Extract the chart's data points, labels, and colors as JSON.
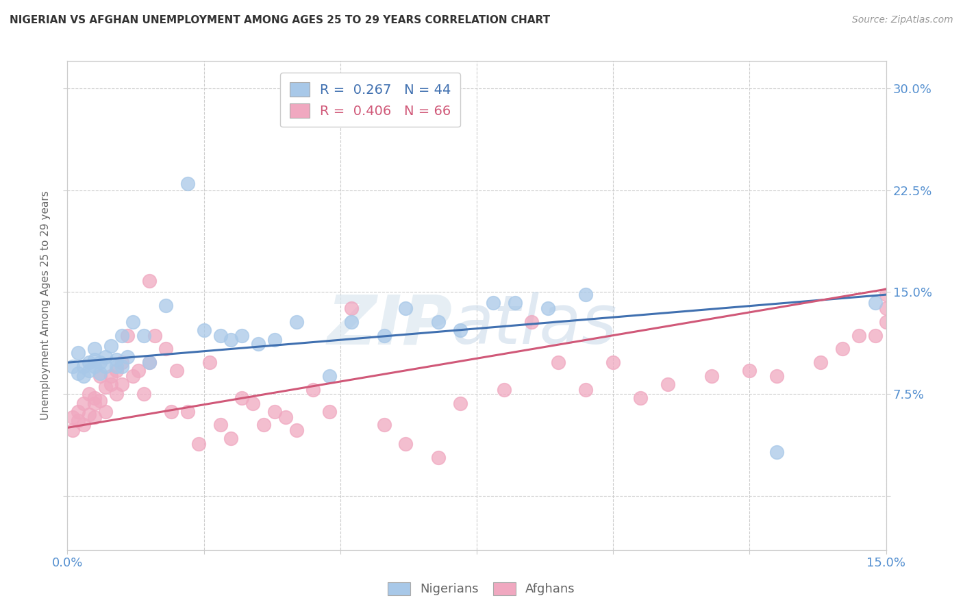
{
  "title": "NIGERIAN VS AFGHAN UNEMPLOYMENT AMONG AGES 25 TO 29 YEARS CORRELATION CHART",
  "source": "Source: ZipAtlas.com",
  "ylabel": "Unemployment Among Ages 25 to 29 years",
  "xlim": [
    0.0,
    0.15
  ],
  "ylim": [
    -0.04,
    0.32
  ],
  "xticks": [
    0.0,
    0.025,
    0.05,
    0.075,
    0.1,
    0.125,
    0.15
  ],
  "xtick_labels": [
    "0.0%",
    "",
    "",
    "",
    "",
    "",
    "15.0%"
  ],
  "ytick_positions": [
    0.0,
    0.075,
    0.15,
    0.225,
    0.3
  ],
  "ytick_labels_right": [
    "",
    "7.5%",
    "15.0%",
    "22.5%",
    "30.0%"
  ],
  "nigerian_color": "#a8c8e8",
  "afghan_color": "#f0a8c0",
  "nigerian_line_color": "#4070b0",
  "afghan_line_color": "#d05878",
  "nigerian_R": 0.267,
  "nigerian_N": 44,
  "afghan_R": 0.406,
  "afghan_N": 66,
  "background_color": "#ffffff",
  "grid_color": "#cccccc",
  "nigerian_x": [
    0.001,
    0.002,
    0.002,
    0.003,
    0.003,
    0.004,
    0.004,
    0.005,
    0.005,
    0.005,
    0.006,
    0.006,
    0.007,
    0.007,
    0.008,
    0.009,
    0.009,
    0.01,
    0.01,
    0.011,
    0.012,
    0.014,
    0.015,
    0.018,
    0.022,
    0.025,
    0.028,
    0.03,
    0.032,
    0.035,
    0.038,
    0.042,
    0.048,
    0.052,
    0.058,
    0.062,
    0.068,
    0.072,
    0.078,
    0.082,
    0.088,
    0.095,
    0.13,
    0.148
  ],
  "nigerian_y": [
    0.095,
    0.09,
    0.105,
    0.088,
    0.095,
    0.098,
    0.092,
    0.1,
    0.095,
    0.108,
    0.09,
    0.098,
    0.095,
    0.102,
    0.11,
    0.095,
    0.1,
    0.118,
    0.095,
    0.102,
    0.128,
    0.118,
    0.098,
    0.14,
    0.23,
    0.122,
    0.118,
    0.115,
    0.118,
    0.112,
    0.115,
    0.128,
    0.088,
    0.128,
    0.118,
    0.138,
    0.128,
    0.122,
    0.142,
    0.142,
    0.138,
    0.148,
    0.032,
    0.142
  ],
  "afghan_x": [
    0.001,
    0.001,
    0.002,
    0.002,
    0.003,
    0.003,
    0.004,
    0.004,
    0.005,
    0.005,
    0.005,
    0.006,
    0.006,
    0.007,
    0.007,
    0.008,
    0.008,
    0.009,
    0.009,
    0.01,
    0.01,
    0.011,
    0.012,
    0.013,
    0.014,
    0.015,
    0.015,
    0.016,
    0.018,
    0.019,
    0.02,
    0.022,
    0.024,
    0.026,
    0.028,
    0.03,
    0.032,
    0.034,
    0.036,
    0.038,
    0.04,
    0.042,
    0.045,
    0.048,
    0.052,
    0.058,
    0.062,
    0.068,
    0.072,
    0.08,
    0.085,
    0.09,
    0.095,
    0.1,
    0.105,
    0.11,
    0.118,
    0.125,
    0.13,
    0.138,
    0.142,
    0.145,
    0.148,
    0.15,
    0.15,
    0.15
  ],
  "afghan_y": [
    0.058,
    0.048,
    0.055,
    0.062,
    0.052,
    0.068,
    0.06,
    0.075,
    0.068,
    0.058,
    0.072,
    0.088,
    0.07,
    0.08,
    0.062,
    0.088,
    0.082,
    0.092,
    0.075,
    0.098,
    0.082,
    0.118,
    0.088,
    0.092,
    0.075,
    0.158,
    0.098,
    0.118,
    0.108,
    0.062,
    0.092,
    0.062,
    0.038,
    0.098,
    0.052,
    0.042,
    0.072,
    0.068,
    0.052,
    0.062,
    0.058,
    0.048,
    0.078,
    0.062,
    0.138,
    0.052,
    0.038,
    0.028,
    0.068,
    0.078,
    0.128,
    0.098,
    0.078,
    0.098,
    0.072,
    0.082,
    0.088,
    0.092,
    0.088,
    0.098,
    0.108,
    0.118,
    0.118,
    0.128,
    0.138,
    0.148
  ],
  "nig_line_x0": 0.0,
  "nig_line_y0": 0.098,
  "nig_line_x1": 0.15,
  "nig_line_y1": 0.148,
  "afg_line_x0": 0.0,
  "afg_line_y0": 0.05,
  "afg_line_x1": 0.15,
  "afg_line_y1": 0.152
}
